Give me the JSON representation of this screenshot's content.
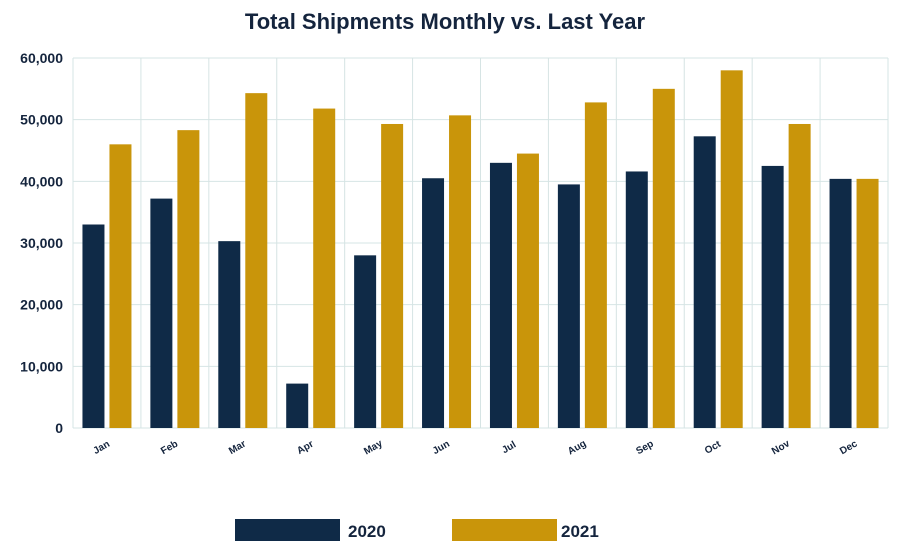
{
  "chart_data": {
    "type": "bar",
    "title": "Total Shipments Monthly vs. Last Year",
    "xlabel": "",
    "ylabel": "",
    "categories": [
      "Jan",
      "Feb",
      "Mar",
      "Apr",
      "May",
      "Jun",
      "Jul",
      "Aug",
      "Sep",
      "Oct",
      "Nov",
      "Dec"
    ],
    "series": [
      {
        "name": "2020",
        "color": "#0f2a47",
        "values": [
          33000,
          37200,
          30300,
          7200,
          28000,
          40500,
          43000,
          39500,
          41600,
          47300,
          42500,
          40400
        ]
      },
      {
        "name": "2021",
        "color": "#c9950a",
        "values": [
          46000,
          48300,
          54300,
          51800,
          49300,
          50700,
          44500,
          52800,
          55000,
          58000,
          49300,
          40400
        ]
      }
    ],
    "ylim": [
      0,
      60000
    ],
    "yticks": [
      0,
      10000,
      20000,
      30000,
      40000,
      50000,
      60000
    ],
    "ytick_labels": [
      "0",
      "10,000",
      "20,000",
      "30,000",
      "40,000",
      "50,000",
      "60,000"
    ],
    "grid": true,
    "legend_position": "bottom-center"
  }
}
